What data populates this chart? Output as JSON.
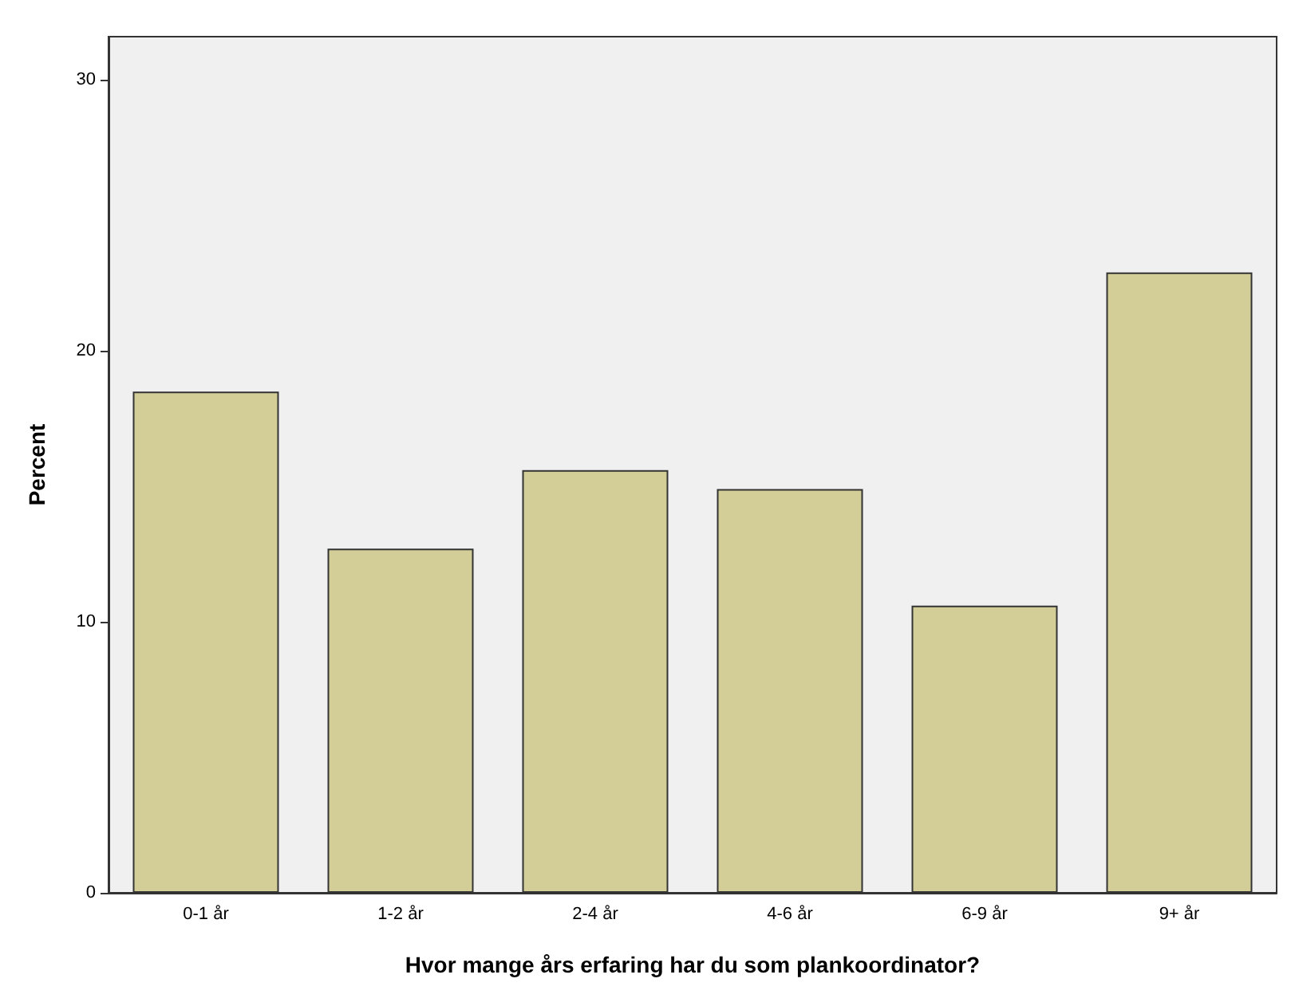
{
  "chart_data": {
    "type": "bar",
    "xlabel": "Hvor mange års erfaring har du som plankoordinator?",
    "ylabel": "Percent",
    "categories": [
      "0-1 år",
      "1-2 år",
      "2-4 år",
      "4-6 år",
      "6-9 år",
      "9+ år"
    ],
    "values": [
      18.5,
      12.7,
      15.6,
      14.9,
      10.6,
      22.9
    ],
    "color": "#d3ce97",
    "ylim": [
      0,
      31.6
    ],
    "yticks": [
      0,
      10,
      20,
      30
    ],
    "grid": false
  }
}
